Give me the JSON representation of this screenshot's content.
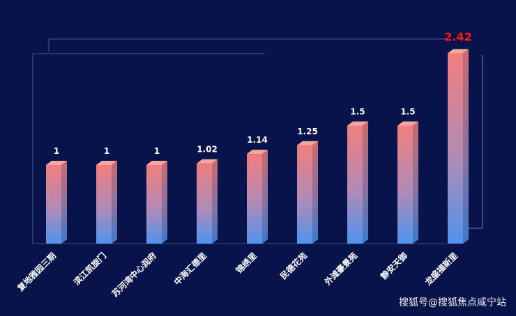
{
  "chart_data": {
    "type": "bar",
    "categories": [
      "复地雅园三期",
      "滨江凯旋门",
      "苏河湾中心润府",
      "中海汇德里",
      "锦绣里",
      "民德花苑",
      "外滩豪景苑",
      "静安天御",
      "龙盛福新里"
    ],
    "values": [
      1,
      1,
      1,
      1.02,
      1.14,
      1.25,
      1.5,
      1.5,
      2.42
    ],
    "value_labels": [
      "1",
      "1",
      "1",
      "1.02",
      "1.14",
      "1.25",
      "1.5",
      "1.5",
      "2.42"
    ],
    "highlight_index": 8,
    "title": "",
    "xlabel": "",
    "ylabel": "",
    "ylim": [
      0,
      2.6
    ],
    "grid": false,
    "colors": {
      "bar_top": "#f07e7e",
      "bar_bottom": "#4f93ee",
      "highlight_label": "#ff1a1a",
      "background": "#07134a"
    }
  },
  "watermark": "搜狐号@搜狐焦点咸宁站"
}
